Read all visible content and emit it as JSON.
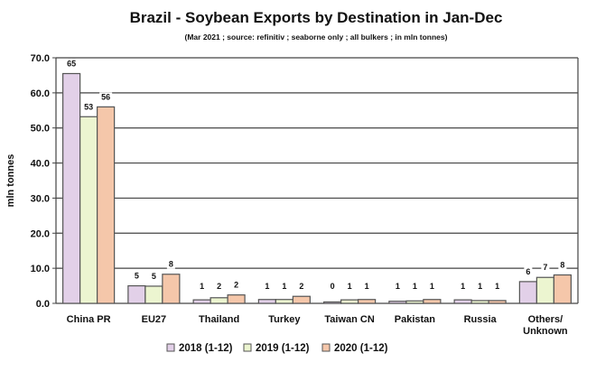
{
  "chart_data": {
    "type": "bar",
    "title": "Brazil - Soybean Exports by Destination in Jan-Dec",
    "subtitle": "(Mar 2021 ; source: refinitiv ; seaborne only ; all bulkers ; in mln tonnes)",
    "xlabel": "",
    "ylabel": "mln tonnes",
    "ylim": [
      0,
      70
    ],
    "yticks": [
      "0.0",
      "10.0",
      "20.0",
      "30.0",
      "40.0",
      "50.0",
      "60.0",
      "70.0"
    ],
    "grid": true,
    "legend_position": "bottom",
    "categories": [
      "China PR",
      "EU27",
      "Thailand",
      "Turkey",
      "Taiwan CN",
      "Pakistan",
      "Russia",
      "Others/\nUnknown"
    ],
    "series": [
      {
        "name": "2018 (1-12)",
        "color": "#e2d0e8",
        "values": [
          65.5,
          5.0,
          1.0,
          1.1,
          0.4,
          0.6,
          1.0,
          6.2
        ],
        "labels": [
          "65",
          "5",
          "1",
          "1",
          "0",
          "1",
          "1",
          "6"
        ]
      },
      {
        "name": "2019 (1-12)",
        "color": "#ecf5d0",
        "values": [
          53.2,
          4.9,
          1.6,
          1.1,
          1.0,
          0.7,
          0.8,
          7.4
        ],
        "labels": [
          "53",
          "5",
          "2",
          "1",
          "1",
          "1",
          "1",
          "7"
        ]
      },
      {
        "name": "2020 (1-12)",
        "color": "#f5c7aa",
        "values": [
          56.0,
          8.3,
          2.4,
          2.0,
          1.1,
          1.1,
          0.8,
          8.1
        ],
        "labels": [
          "56",
          "8",
          "2",
          "2",
          "1",
          "1",
          "1",
          "8"
        ]
      }
    ]
  }
}
